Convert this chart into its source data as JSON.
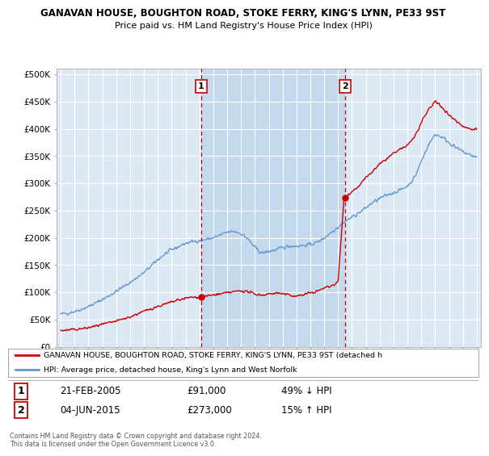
{
  "title1": "GANAVAN HOUSE, BOUGHTON ROAD, STOKE FERRY, KING'S LYNN, PE33 9ST",
  "title2": "Price paid vs. HM Land Registry's House Price Index (HPI)",
  "legend1": "GANAVAN HOUSE, BOUGHTON ROAD, STOKE FERRY, KING'S LYNN, PE33 9ST (detached h",
  "legend2": "HPI: Average price, detached house, King's Lynn and West Norfolk",
  "annotation1_label": "1",
  "annotation1_date": "21-FEB-2005",
  "annotation1_price": "£91,000",
  "annotation1_hpi": "49% ↓ HPI",
  "annotation2_label": "2",
  "annotation2_date": "04-JUN-2015",
  "annotation2_price": "£273,000",
  "annotation2_hpi": "15% ↑ HPI",
  "footer": "Contains HM Land Registry data © Crown copyright and database right 2024.\nThis data is licensed under the Open Government Licence v3.0.",
  "bg_color": "#dce9f5",
  "fill_color": "#c5d9ee",
  "red_color": "#cc0000",
  "blue_color": "#6699cc",
  "vline_color": "#cc0000",
  "marker1_x": 2005.13,
  "marker1_y": 91000,
  "marker2_x": 2015.5,
  "marker2_y": 273000,
  "ylim": [
    0,
    510000
  ],
  "xlim_start": 1994.7,
  "xlim_end": 2025.3,
  "hpi_years": [
    1995,
    1995.5,
    1996,
    1996.5,
    1997,
    1997.5,
    1998,
    1998.5,
    1999,
    1999.5,
    2000,
    2000.5,
    2001,
    2001.5,
    2002,
    2002.5,
    2003,
    2003.5,
    2004,
    2004.5,
    2005,
    2005.5,
    2006,
    2006.5,
    2007,
    2007.5,
    2008,
    2008.5,
    2009,
    2009.5,
    2010,
    2010.5,
    2011,
    2011.5,
    2012,
    2012.5,
    2013,
    2013.5,
    2014,
    2014.5,
    2015,
    2015.5,
    2016,
    2016.5,
    2017,
    2017.5,
    2018,
    2018.5,
    2019,
    2019.5,
    2020,
    2020.5,
    2021,
    2021.5,
    2022,
    2022.5,
    2023,
    2023.5,
    2024,
    2024.5,
    2025
  ],
  "hpi_vals": [
    60000,
    62000,
    65000,
    69000,
    74000,
    80000,
    87000,
    94000,
    102000,
    110000,
    118000,
    127000,
    136000,
    148000,
    160000,
    170000,
    178000,
    184000,
    190000,
    193000,
    195000,
    197000,
    200000,
    205000,
    210000,
    212000,
    208000,
    198000,
    182000,
    172000,
    175000,
    178000,
    182000,
    185000,
    185000,
    186000,
    188000,
    192000,
    200000,
    210000,
    220000,
    230000,
    238000,
    246000,
    255000,
    265000,
    272000,
    278000,
    283000,
    288000,
    295000,
    310000,
    340000,
    370000,
    390000,
    385000,
    375000,
    365000,
    358000,
    352000,
    348000
  ],
  "red_years": [
    1995,
    1995.5,
    1996,
    1996.5,
    1997,
    1997.5,
    1998,
    1998.5,
    1999,
    1999.5,
    2000,
    2000.5,
    2001,
    2001.5,
    2002,
    2002.5,
    2003,
    2003.5,
    2004,
    2004.5,
    2005,
    2005.13,
    2005.14,
    2005.5,
    2006,
    2006.5,
    2007,
    2007.5,
    2008,
    2008.5,
    2009,
    2009.5,
    2010,
    2010.5,
    2011,
    2011.5,
    2012,
    2012.5,
    2013,
    2013.5,
    2014,
    2014.5,
    2015,
    2015.42,
    2015.43,
    2015.5,
    2016,
    2016.5,
    2017,
    2017.5,
    2018,
    2018.5,
    2019,
    2019.5,
    2020,
    2020.5,
    2021,
    2021.5,
    2022,
    2022.5,
    2023,
    2023.5,
    2024,
    2024.5,
    2025
  ],
  "red_vals": [
    30000,
    30500,
    32000,
    33000,
    35000,
    38000,
    41000,
    44000,
    47000,
    51000,
    55000,
    60000,
    65000,
    70000,
    74000,
    78000,
    82000,
    86000,
    89000,
    91000,
    91000,
    91000,
    91000,
    93000,
    95000,
    97000,
    99000,
    101000,
    103000,
    101000,
    97000,
    95000,
    97000,
    99000,
    97000,
    95000,
    93000,
    96000,
    99000,
    102000,
    108000,
    112000,
    118000,
    273000,
    273000,
    275000,
    285000,
    295000,
    310000,
    322000,
    335000,
    345000,
    355000,
    362000,
    370000,
    385000,
    410000,
    435000,
    450000,
    440000,
    425000,
    415000,
    405000,
    400000,
    400000
  ]
}
